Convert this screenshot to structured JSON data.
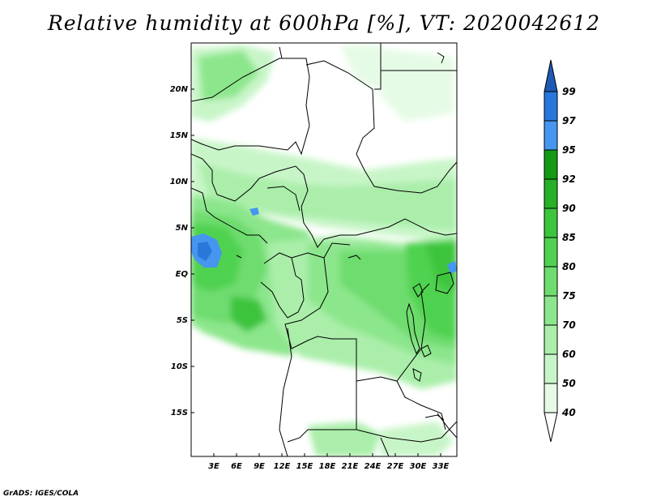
{
  "title": "Relative humidity at 600hPa [%], VT: 2020042612",
  "credit": "GrADS: IGES/COLA",
  "map": {
    "lat_labels": [
      "20N",
      "15N",
      "10N",
      "5N",
      "EQ",
      "5S",
      "10S",
      "15S"
    ],
    "lon_labels": [
      "3E",
      "6E",
      "9E",
      "12E",
      "15E",
      "18E",
      "21E",
      "24E",
      "27E",
      "30E",
      "33E"
    ]
  },
  "colorbar": {
    "levels": [
      "40",
      "50",
      "60",
      "70",
      "75",
      "80",
      "85",
      "90",
      "92",
      "95",
      "97",
      "99"
    ],
    "colors": {
      "c40_50": "#e6fbe6",
      "c50_60": "#c8f5c8",
      "c60_70": "#aaeeaa",
      "c70_75": "#8ce68c",
      "c75_80": "#6edc6e",
      "c80_85": "#50d250",
      "c85_90": "#3cc43c",
      "c90_92": "#28b028",
      "c92_95": "#149a14",
      "c95_97": "#4696f0",
      "c97_99": "#2878dc",
      "c99_up": "#1e5ab4"
    }
  }
}
